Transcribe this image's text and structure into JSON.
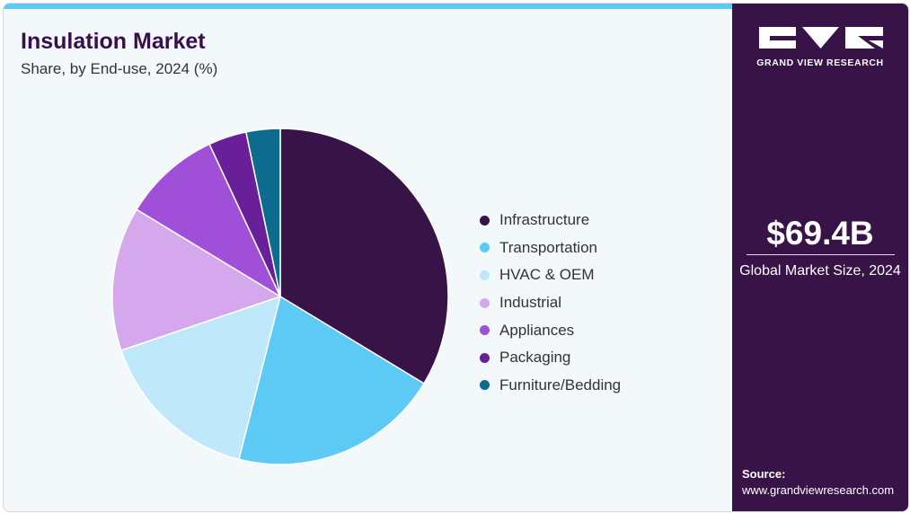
{
  "header": {
    "title": "Insulation Market",
    "subtitle": "Share, by End-use, 2024 (%)"
  },
  "sidebar": {
    "brand": "GRAND VIEW RESEARCH",
    "market_size": "$69.4B",
    "market_size_label": "Global Market Size, 2024",
    "source_label": "Source:",
    "source_url": "www.grandviewresearch.com"
  },
  "colors": {
    "accent_bar": "#5ccaf5",
    "sidebar_bg": "#371347",
    "title": "#37104b"
  },
  "chart_data": {
    "type": "pie",
    "title": "Insulation Market",
    "subtitle": "Share, by End-use, 2024 (%)",
    "start_angle_deg": 0,
    "direction": "clockwise",
    "legend_position": "right",
    "categories": [
      "Infrastructure",
      "Transportation",
      "HVAC & OEM",
      "Industrial",
      "Appliances",
      "Packaging",
      "Furniture/Bedding"
    ],
    "values": [
      34.0,
      20.5,
      16.0,
      14.0,
      9.5,
      3.7,
      3.3
    ],
    "colors": [
      "#371347",
      "#5ccaf5",
      "#bfe9fa",
      "#d5a8ed",
      "#a050d8",
      "#6a1f9a",
      "#0d6b8e"
    ]
  }
}
